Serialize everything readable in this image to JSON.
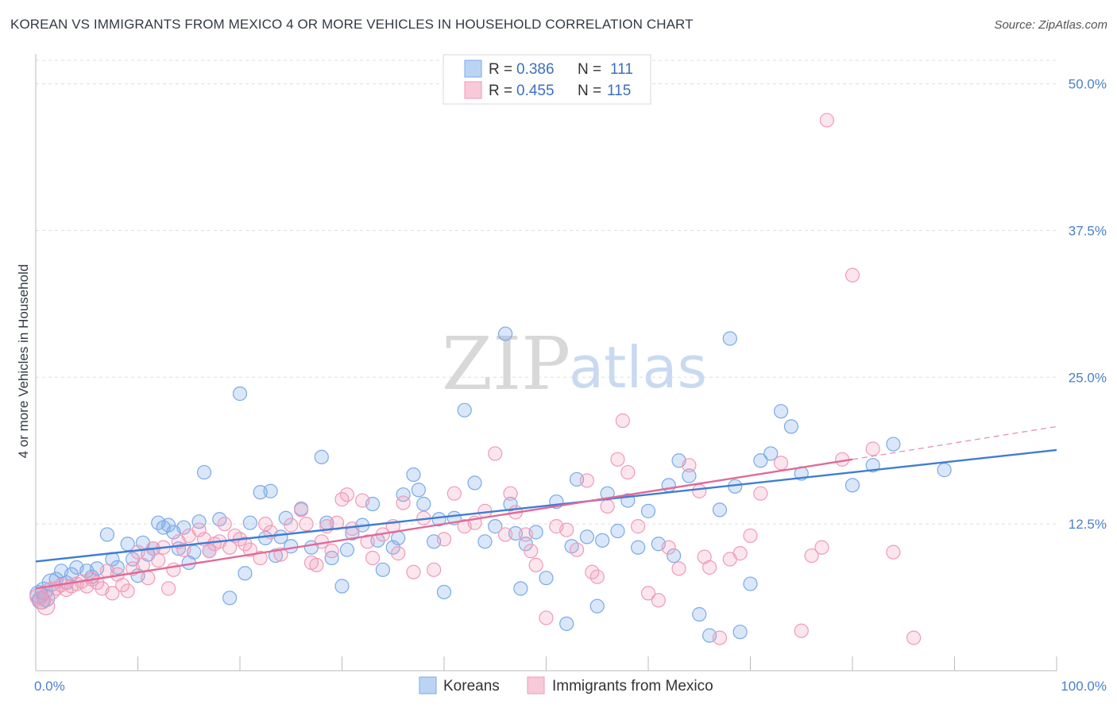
{
  "title": "KOREAN VS IMMIGRANTS FROM MEXICO 4 OR MORE VEHICLES IN HOUSEHOLD CORRELATION CHART",
  "source": "Source: ZipAtlas.com",
  "watermark": {
    "zip": "ZIP",
    "atlas": "atlas"
  },
  "legend": {
    "rows": [
      {
        "r_label": "R =",
        "r_value": "0.386",
        "n_label": "N =",
        "n_value": "111",
        "color": "#7aaae8"
      },
      {
        "r_label": "R =",
        "r_value": "0.455",
        "n_label": "N =",
        "n_value": "115",
        "color": "#f09ab8"
      }
    ]
  },
  "bottom_legend": [
    {
      "label": "Koreans",
      "color": "#7aaae8"
    },
    {
      "label": "Immigrants from Mexico",
      "color": "#f09ab8"
    }
  ],
  "chart_data": {
    "type": "scatter",
    "title": "KOREAN VS IMMIGRANTS FROM MEXICO 4 OR MORE VEHICLES IN HOUSEHOLD CORRELATION CHART",
    "xlabel": "",
    "ylabel": "4 or more Vehicles in Household",
    "xlim": [
      0,
      100
    ],
    "ylim": [
      0,
      52
    ],
    "x_tick_labels": [
      "0.0%",
      "100.0%"
    ],
    "y_ticks": [
      12.5,
      25.0,
      37.5,
      50.0
    ],
    "y_tick_labels": [
      "12.5%",
      "25.0%",
      "37.5%",
      "50.0%"
    ],
    "grid": true,
    "legend_position": "top-center",
    "series": [
      {
        "name": "Koreans",
        "color": "#7aaae8",
        "trend": {
          "x": [
            0,
            100
          ],
          "y": [
            9.3,
            18.8
          ]
        },
        "points": [
          [
            0.3,
            6.5
          ],
          [
            0.5,
            6.0
          ],
          [
            0.8,
            6.8
          ],
          [
            1.0,
            6.2
          ],
          [
            1.5,
            7.5
          ],
          [
            2.0,
            7.8
          ],
          [
            2.5,
            8.5
          ],
          [
            3.0,
            7.5
          ],
          [
            3.5,
            8.2
          ],
          [
            4.0,
            8.8
          ],
          [
            5.0,
            8.5
          ],
          [
            5.5,
            8.0
          ],
          [
            6.0,
            8.7
          ],
          [
            7.0,
            11.6
          ],
          [
            7.5,
            9.5
          ],
          [
            8.0,
            8.8
          ],
          [
            9.0,
            10.8
          ],
          [
            9.5,
            9.5
          ],
          [
            10.0,
            8.1
          ],
          [
            10.5,
            10.9
          ],
          [
            11.0,
            9.9
          ],
          [
            11.5,
            10.4
          ],
          [
            12.0,
            12.6
          ],
          [
            12.5,
            12.2
          ],
          [
            13.0,
            12.4
          ],
          [
            13.5,
            11.8
          ],
          [
            14.0,
            10.4
          ],
          [
            14.5,
            12.2
          ],
          [
            15.0,
            9.2
          ],
          [
            15.5,
            10.1
          ],
          [
            16.0,
            12.7
          ],
          [
            16.5,
            16.9
          ],
          [
            17.0,
            10.2
          ],
          [
            18.0,
            12.9
          ],
          [
            19.0,
            6.2
          ],
          [
            20.0,
            23.6
          ],
          [
            20.5,
            8.3
          ],
          [
            21.0,
            12.6
          ],
          [
            22.0,
            15.2
          ],
          [
            22.5,
            11.3
          ],
          [
            23.0,
            15.3
          ],
          [
            23.5,
            9.8
          ],
          [
            24.0,
            11.4
          ],
          [
            24.5,
            13.0
          ],
          [
            25.0,
            10.6
          ],
          [
            26.0,
            13.8
          ],
          [
            27.0,
            10.5
          ],
          [
            28.0,
            18.2
          ],
          [
            28.5,
            12.6
          ],
          [
            29.0,
            9.6
          ],
          [
            30.0,
            7.2
          ],
          [
            30.5,
            10.3
          ],
          [
            31.0,
            11.7
          ],
          [
            32.0,
            12.4
          ],
          [
            33.0,
            14.2
          ],
          [
            33.5,
            11.1
          ],
          [
            34.0,
            8.6
          ],
          [
            35.0,
            10.5
          ],
          [
            35.5,
            11.3
          ],
          [
            36.0,
            15.0
          ],
          [
            37.0,
            16.7
          ],
          [
            37.5,
            15.4
          ],
          [
            38.0,
            14.2
          ],
          [
            39.0,
            11.0
          ],
          [
            39.5,
            12.9
          ],
          [
            40.0,
            6.7
          ],
          [
            41.0,
            13.0
          ],
          [
            42.0,
            22.2
          ],
          [
            43.0,
            16.0
          ],
          [
            44.0,
            11.0
          ],
          [
            45.0,
            12.3
          ],
          [
            46.0,
            28.7
          ],
          [
            46.5,
            14.2
          ],
          [
            47.0,
            11.7
          ],
          [
            47.5,
            7.0
          ],
          [
            48.0,
            10.8
          ],
          [
            49.0,
            11.8
          ],
          [
            50.0,
            7.9
          ],
          [
            51.0,
            14.4
          ],
          [
            52.0,
            4.0
          ],
          [
            52.5,
            10.6
          ],
          [
            53.0,
            16.3
          ],
          [
            54.0,
            11.4
          ],
          [
            55.0,
            5.5
          ],
          [
            55.5,
            11.1
          ],
          [
            56.0,
            15.1
          ],
          [
            57.0,
            11.9
          ],
          [
            58.0,
            14.5
          ],
          [
            59.0,
            10.5
          ],
          [
            60.0,
            13.6
          ],
          [
            61.0,
            10.8
          ],
          [
            62.0,
            15.8
          ],
          [
            62.5,
            9.8
          ],
          [
            63.0,
            17.9
          ],
          [
            64.0,
            16.6
          ],
          [
            65.0,
            4.8
          ],
          [
            66.0,
            3.0
          ],
          [
            67.0,
            13.7
          ],
          [
            68.0,
            28.3
          ],
          [
            68.5,
            15.7
          ],
          [
            69.0,
            3.3
          ],
          [
            70.0,
            7.4
          ],
          [
            71.0,
            17.9
          ],
          [
            72.0,
            18.5
          ],
          [
            73.0,
            22.1
          ],
          [
            74.0,
            20.8
          ],
          [
            75.0,
            16.8
          ],
          [
            80.0,
            15.8
          ],
          [
            82.0,
            17.5
          ],
          [
            84.0,
            19.3
          ],
          [
            89.0,
            17.1
          ]
        ]
      },
      {
        "name": "Immigrants from Mexico",
        "color": "#f09ab8",
        "trend": {
          "x": [
            0,
            80
          ],
          "y": [
            7.0,
            18.0
          ]
        },
        "trend_extension": {
          "x": [
            80,
            100
          ],
          "y": [
            18.0,
            20.8
          ]
        },
        "points": [
          [
            0.3,
            6.3
          ],
          [
            0.6,
            6.0
          ],
          [
            1.0,
            5.5
          ],
          [
            1.5,
            6.8
          ],
          [
            2.0,
            7.0
          ],
          [
            2.5,
            7.3
          ],
          [
            3.0,
            6.9
          ],
          [
            3.5,
            7.2
          ],
          [
            4.0,
            7.4
          ],
          [
            4.5,
            7.6
          ],
          [
            5.0,
            7.2
          ],
          [
            5.5,
            7.8
          ],
          [
            6.0,
            7.5
          ],
          [
            6.5,
            7.0
          ],
          [
            7.0,
            8.5
          ],
          [
            7.5,
            6.6
          ],
          [
            8.0,
            8.2
          ],
          [
            8.5,
            7.3
          ],
          [
            9.0,
            6.8
          ],
          [
            9.5,
            8.7
          ],
          [
            10.0,
            10.1
          ],
          [
            10.5,
            9.0
          ],
          [
            11.0,
            7.9
          ],
          [
            11.5,
            10.4
          ],
          [
            12.0,
            9.4
          ],
          [
            12.5,
            10.5
          ],
          [
            13.0,
            7.0
          ],
          [
            13.5,
            8.6
          ],
          [
            14.0,
            11.0
          ],
          [
            14.5,
            10.3
          ],
          [
            15.0,
            11.5
          ],
          [
            16.0,
            12.0
          ],
          [
            16.5,
            11.2
          ],
          [
            17.0,
            10.2
          ],
          [
            17.5,
            10.8
          ],
          [
            18.0,
            11.0
          ],
          [
            18.5,
            12.5
          ],
          [
            19.0,
            10.5
          ],
          [
            19.5,
            11.5
          ],
          [
            20.0,
            11.2
          ],
          [
            20.5,
            10.8
          ],
          [
            21.0,
            10.3
          ],
          [
            22.0,
            9.6
          ],
          [
            22.5,
            12.5
          ],
          [
            23.0,
            11.8
          ],
          [
            24.0,
            9.9
          ],
          [
            25.0,
            12.4
          ],
          [
            26.0,
            13.7
          ],
          [
            26.5,
            12.5
          ],
          [
            27.0,
            9.2
          ],
          [
            27.5,
            9.0
          ],
          [
            28.0,
            11.0
          ],
          [
            28.5,
            12.3
          ],
          [
            29.0,
            10.2
          ],
          [
            29.5,
            12.6
          ],
          [
            30.0,
            14.6
          ],
          [
            30.5,
            15.0
          ],
          [
            31.0,
            12.1
          ],
          [
            32.0,
            14.5
          ],
          [
            32.5,
            11.0
          ],
          [
            33.0,
            9.6
          ],
          [
            34.0,
            11.6
          ],
          [
            35.0,
            12.3
          ],
          [
            35.5,
            10.0
          ],
          [
            36.0,
            14.3
          ],
          [
            37.0,
            8.4
          ],
          [
            38.0,
            13.0
          ],
          [
            39.0,
            8.6
          ],
          [
            40.0,
            11.2
          ],
          [
            41.0,
            15.1
          ],
          [
            42.0,
            12.3
          ],
          [
            43.0,
            12.6
          ],
          [
            44.0,
            13.6
          ],
          [
            45.0,
            18.5
          ],
          [
            46.0,
            11.6
          ],
          [
            46.5,
            15.1
          ],
          [
            47.0,
            13.5
          ],
          [
            48.0,
            11.6
          ],
          [
            48.5,
            10.2
          ],
          [
            49.0,
            9.0
          ],
          [
            50.0,
            4.5
          ],
          [
            51.0,
            12.3
          ],
          [
            52.0,
            12.0
          ],
          [
            53.0,
            10.3
          ],
          [
            54.0,
            16.2
          ],
          [
            54.5,
            8.4
          ],
          [
            55.0,
            8.0
          ],
          [
            56.0,
            14.0
          ],
          [
            57.0,
            18.0
          ],
          [
            57.5,
            21.3
          ],
          [
            58.0,
            16.9
          ],
          [
            59.0,
            12.3
          ],
          [
            60.0,
            6.6
          ],
          [
            61.0,
            6.0
          ],
          [
            62.0,
            10.5
          ],
          [
            63.0,
            8.7
          ],
          [
            64.0,
            17.5
          ],
          [
            65.0,
            15.3
          ],
          [
            65.5,
            9.7
          ],
          [
            66.0,
            8.8
          ],
          [
            67.0,
            2.8
          ],
          [
            68.0,
            9.5
          ],
          [
            69.0,
            10.0
          ],
          [
            70.0,
            11.5
          ],
          [
            71.0,
            15.1
          ],
          [
            73.0,
            17.7
          ],
          [
            75.0,
            3.4
          ],
          [
            76.0,
            9.8
          ],
          [
            77.0,
            10.5
          ],
          [
            79.0,
            18.0
          ],
          [
            80.0,
            33.7
          ],
          [
            82.0,
            18.9
          ],
          [
            84.0,
            10.1
          ],
          [
            86.0,
            2.8
          ],
          [
            77.5,
            46.9
          ]
        ]
      }
    ]
  }
}
